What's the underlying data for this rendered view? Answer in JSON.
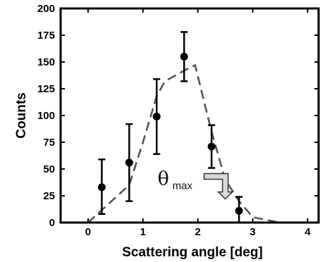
{
  "chart_data": {
    "type": "scatter",
    "xlabel": "Scattering angle [deg]",
    "ylabel": "Counts",
    "xlim": [
      -0.5,
      4.2
    ],
    "ylim": [
      0,
      200
    ],
    "x_ticks": [
      0,
      1,
      2,
      3,
      4
    ],
    "y_ticks": [
      0,
      25,
      50,
      75,
      100,
      125,
      150,
      175,
      200
    ],
    "grid": false,
    "series": [
      {
        "kind": "points_with_error_bars",
        "color": "#000000",
        "points": [
          {
            "x": 0.25,
            "y": 33,
            "err_low": 8,
            "err_high": 59
          },
          {
            "x": 0.75,
            "y": 56,
            "err_low": 20,
            "err_high": 92
          },
          {
            "x": 1.25,
            "y": 99,
            "err_low": 64,
            "err_high": 134
          },
          {
            "x": 1.75,
            "y": 155,
            "err_low": 132,
            "err_high": 178
          },
          {
            "x": 2.25,
            "y": 71,
            "err_low": 51,
            "err_high": 91
          },
          {
            "x": 2.75,
            "y": 11,
            "err_low": 0,
            "err_high": 24
          }
        ]
      },
      {
        "kind": "dashed_line",
        "color": "#555555",
        "x": [
          0.0,
          0.75,
          1.0,
          1.25,
          1.4,
          1.75,
          1.95,
          2.25,
          2.5,
          2.75,
          3.0,
          3.5
        ],
        "y": [
          0,
          35,
          75,
          118,
          132,
          142,
          147,
          85,
          40,
          20,
          5,
          0
        ]
      }
    ],
    "annotations": [
      {
        "text_main": "θ",
        "text_sub": "max",
        "x": 2.5,
        "y": 22,
        "arrow": "down"
      }
    ]
  }
}
